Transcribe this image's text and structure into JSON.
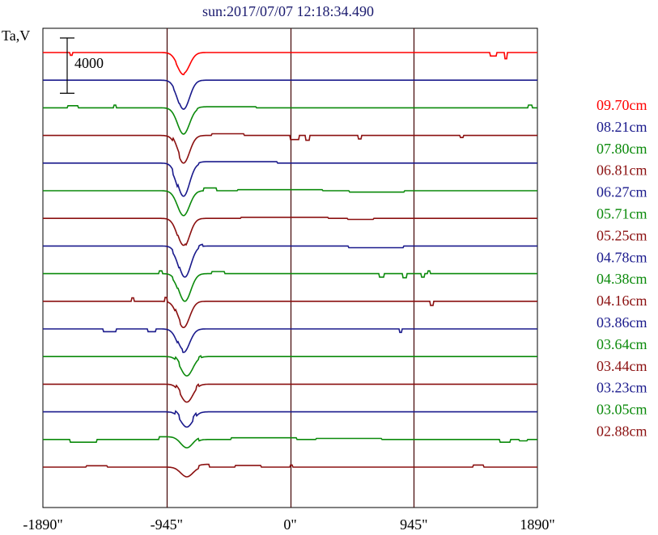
{
  "chart_data": {
    "type": "line",
    "title": "sun:2017/07/07 12:18:34.490",
    "ylabel": "Ta,V",
    "xlim": [
      -1890,
      1890
    ],
    "x_ticks": [
      {
        "value": -1890,
        "label": "-1890\""
      },
      {
        "value": -945,
        "label": "-945\""
      },
      {
        "value": 0,
        "label": "0\""
      },
      {
        "value": 945,
        "label": "945\""
      },
      {
        "value": 1890,
        "label": "1890\""
      }
    ],
    "vertical_gridlines": [
      -945,
      0,
      945
    ],
    "scale_bar": {
      "label": "4000",
      "value": 4000
    },
    "series_spacing": 4000,
    "series": [
      {
        "name": "09.70cm",
        "color": "#ff0000",
        "dip_depth": 3000,
        "dip_x": -815,
        "dip_width": 65,
        "bumps": [
          {
            "x": -1685,
            "w": 18,
            "h": -400
          },
          {
            "x": 1530,
            "w": 50,
            "h": -500
          },
          {
            "x": 1640,
            "w": 20,
            "h": -900
          },
          {
            "x": -870,
            "w": 60,
            "h": -200
          }
        ]
      },
      {
        "name": "08.21cm",
        "color": "#1a1a8c",
        "dip_depth": 4200,
        "dip_x": -815,
        "dip_width": 65,
        "bumps": [
          {
            "x": -890,
            "w": 40,
            "h": -200
          }
        ]
      },
      {
        "name": "07.80cm",
        "color": "#0b8a0b",
        "dip_depth": 3800,
        "dip_x": -815,
        "dip_width": 65,
        "bumps": [
          {
            "x": -1700,
            "w": 80,
            "h": 300
          },
          {
            "x": -1350,
            "w": 20,
            "h": 400
          },
          {
            "x": -710,
            "w": 450,
            "h": 150
          },
          {
            "x": 1820,
            "w": 30,
            "h": 400
          }
        ]
      },
      {
        "name": "06.81cm",
        "color": "#8b1010",
        "dip_depth": 4000,
        "dip_x": -815,
        "dip_width": 65,
        "bumps": [
          {
            "x": -900,
            "w": 50,
            "h": 500
          },
          {
            "x": -600,
            "w": 250,
            "h": 250
          },
          {
            "x": 0,
            "w": 70,
            "h": -600
          },
          {
            "x": 120,
            "w": 30,
            "h": -700
          },
          {
            "x": 520,
            "w": 25,
            "h": -500
          },
          {
            "x": 1300,
            "w": 25,
            "h": -300
          }
        ]
      },
      {
        "name": "06.27cm",
        "color": "#1a1a8c",
        "dip_depth": 4800,
        "dip_x": -815,
        "dip_width": 65,
        "bumps": [
          {
            "x": -900,
            "w": 40,
            "h": -600
          },
          {
            "x": -700,
            "w": 600,
            "h": 200
          }
        ]
      },
      {
        "name": "05.71cm",
        "color": "#0b8a0b",
        "dip_depth": 3600,
        "dip_x": -815,
        "dip_width": 65,
        "bumps": [
          {
            "x": -660,
            "w": 100,
            "h": 400
          },
          {
            "x": -400,
            "w": 650,
            "h": 150
          },
          {
            "x": 450,
            "w": 420,
            "h": -200
          }
        ]
      },
      {
        "name": "05.25cm",
        "color": "#8b1010",
        "dip_depth": 4200,
        "dip_x": -815,
        "dip_width": 65,
        "bumps": [
          {
            "x": -860,
            "w": 60,
            "h": 300
          },
          {
            "x": -380,
            "w": 670,
            "h": 150
          },
          {
            "x": 440,
            "w": 200,
            "h": -150
          }
        ]
      },
      {
        "name": "04.78cm",
        "color": "#1a1a8c",
        "dip_depth": 4500,
        "dip_x": -805,
        "dip_width": 65,
        "bumps": [
          {
            "x": -900,
            "w": 50,
            "h": -400
          },
          {
            "x": -700,
            "w": 30,
            "h": 300
          },
          {
            "x": 445,
            "w": 420,
            "h": -250
          }
        ]
      },
      {
        "name": "04.38cm",
        "color": "#0b8a0b",
        "dip_depth": 4000,
        "dip_x": -805,
        "dip_width": 65,
        "bumps": [
          {
            "x": -1000,
            "w": 20,
            "h": 400
          },
          {
            "x": -900,
            "w": 40,
            "h": -300
          },
          {
            "x": -600,
            "w": 100,
            "h": 300
          },
          {
            "x": 680,
            "w": 40,
            "h": -500
          },
          {
            "x": 860,
            "w": 30,
            "h": -600
          },
          {
            "x": 1000,
            "w": 30,
            "h": -500
          },
          {
            "x": 1050,
            "w": 20,
            "h": 400
          }
        ]
      },
      {
        "name": "04.16cm",
        "color": "#8b1010",
        "dip_depth": 3800,
        "dip_x": -815,
        "dip_width": 65,
        "bumps": [
          {
            "x": -1215,
            "w": 18,
            "h": 500
          },
          {
            "x": -960,
            "w": 20,
            "h": 600
          },
          {
            "x": -880,
            "w": 40,
            "h": 400
          },
          {
            "x": 1070,
            "w": 25,
            "h": -600
          }
        ]
      },
      {
        "name": "03.86cm",
        "color": "#1a1a8c",
        "dip_depth": 3400,
        "dip_x": -815,
        "dip_width": 65,
        "bumps": [
          {
            "x": -1430,
            "w": 100,
            "h": -400
          },
          {
            "x": -1090,
            "w": 60,
            "h": -400
          },
          {
            "x": -860,
            "w": 40,
            "h": 400
          },
          {
            "x": 835,
            "w": 20,
            "h": -500
          }
        ]
      },
      {
        "name": "03.64cm",
        "color": "#0b8a0b",
        "dip_depth": 2800,
        "dip_x": -790,
        "dip_width": 65,
        "bumps": [
          {
            "x": -880,
            "w": 30,
            "h": 400
          },
          {
            "x": -700,
            "w": 20,
            "h": 300
          }
        ]
      },
      {
        "name": "03.44cm",
        "color": "#8b1010",
        "dip_depth": 2600,
        "dip_x": -790,
        "dip_width": 65,
        "bumps": [
          {
            "x": -870,
            "w": 30,
            "h": 400
          },
          {
            "x": -720,
            "w": 20,
            "h": 400
          }
        ]
      },
      {
        "name": "03.23cm",
        "color": "#1a1a8c",
        "dip_depth": 2200,
        "dip_x": -790,
        "dip_width": 65,
        "bumps": [
          {
            "x": -880,
            "w": 30,
            "h": 500
          },
          {
            "x": -740,
            "w": 20,
            "h": 500
          }
        ]
      },
      {
        "name": "03.05cm",
        "color": "#0b8a0b",
        "dip_depth": 1600,
        "dip_x": -790,
        "dip_width": 65,
        "bumps": [
          {
            "x": -1680,
            "w": 200,
            "h": -400
          },
          {
            "x": -1000,
            "w": 300,
            "h": 400
          },
          {
            "x": -450,
            "w": 500,
            "h": 250
          },
          {
            "x": 200,
            "w": 500,
            "h": 150
          },
          {
            "x": 1600,
            "w": 80,
            "h": -400
          },
          {
            "x": 1750,
            "w": 60,
            "h": -200
          }
        ]
      },
      {
        "name": "02.88cm",
        "color": "#8b1010",
        "dip_depth": 1400,
        "dip_x": -790,
        "dip_width": 65,
        "bumps": [
          {
            "x": -1560,
            "w": 160,
            "h": 200
          },
          {
            "x": -700,
            "w": 80,
            "h": 400
          },
          {
            "x": -420,
            "w": 200,
            "h": 250
          },
          {
            "x": 0,
            "w": 20,
            "h": 300
          },
          {
            "x": 1400,
            "w": 80,
            "h": 300
          }
        ]
      }
    ]
  }
}
